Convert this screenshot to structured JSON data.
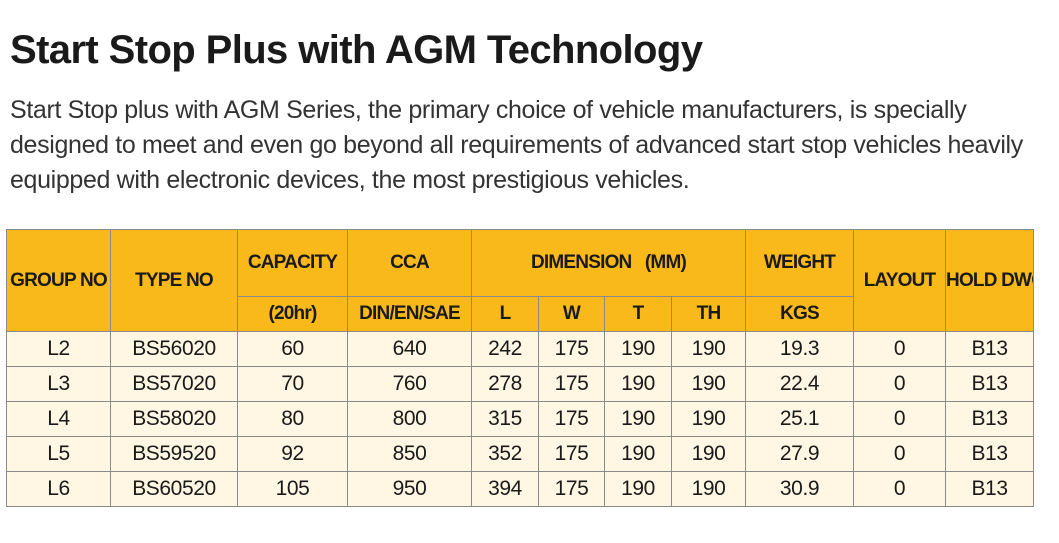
{
  "title": "Start Stop Plus with AGM Technology",
  "intro": "Start Stop plus with AGM Series, the primary choice of vehicle manufacturers, is specially designed to meet and even go beyond all requirements of advanced start stop vehicles heavily equipped with electronic devices, the most prestigious vehicles.",
  "table": {
    "headers": {
      "group_no": "GROUP NO",
      "type_no": "TYPE NO",
      "capacity": "CAPACITY",
      "capacity_sub": "(20hr)",
      "cca": "CCA",
      "cca_sub": "DIN/EN/SAE",
      "dimension": "DIMENSION   (MM)",
      "dim_l": "L",
      "dim_w": "W",
      "dim_t": "T",
      "dim_th": "TH",
      "weight": "WEIGHT",
      "weight_sub": "KGS",
      "layout": "LAYOUT",
      "hold_down": "HOLD DWON"
    },
    "rows": [
      {
        "group": "L2",
        "type": "BS56020",
        "capacity": "60",
        "cca": "640",
        "l": "242",
        "w": "175",
        "t": "190",
        "th": "190",
        "weight": "19.3",
        "layout": "0",
        "hold": "B13"
      },
      {
        "group": "L3",
        "type": "BS57020",
        "capacity": "70",
        "cca": "760",
        "l": "278",
        "w": "175",
        "t": "190",
        "th": "190",
        "weight": "22.4",
        "layout": "0",
        "hold": "B13"
      },
      {
        "group": "L4",
        "type": "BS58020",
        "capacity": "80",
        "cca": "800",
        "l": "315",
        "w": "175",
        "t": "190",
        "th": "190",
        "weight": "25.1",
        "layout": "0",
        "hold": "B13"
      },
      {
        "group": "L5",
        "type": "BS59520",
        "capacity": "92",
        "cca": "850",
        "l": "352",
        "w": "175",
        "t": "190",
        "th": "190",
        "weight": "27.9",
        "layout": "0",
        "hold": "B13"
      },
      {
        "group": "L6",
        "type": "BS60520",
        "capacity": "105",
        "cca": "950",
        "l": "394",
        "w": "175",
        "t": "190",
        "th": "190",
        "weight": "30.9",
        "layout": "0",
        "hold": "B13"
      }
    ]
  },
  "colors": {
    "header_bg": "#f9b91b",
    "row_bg": "#fff7e3",
    "border": "#8a8a8a"
  }
}
